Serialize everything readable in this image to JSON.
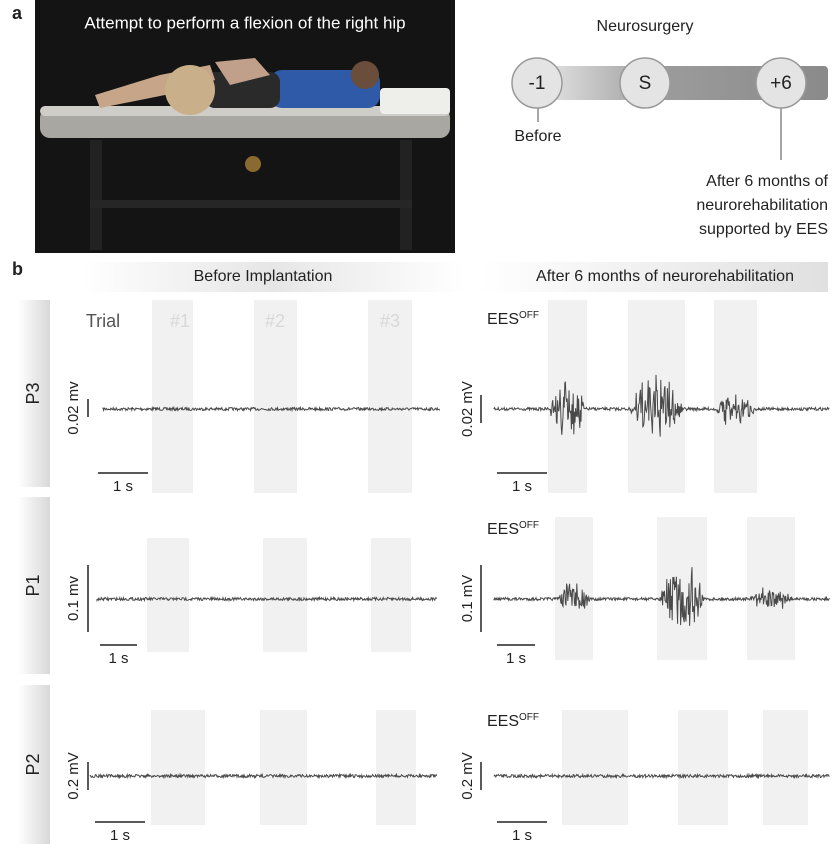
{
  "panel_a": {
    "label": "a",
    "photo_caption": "Attempt to perform a flexion of the right hip",
    "timeline": {
      "event_label": "Neurosurgery",
      "points": [
        "-1",
        "S",
        "+6"
      ],
      "before_label": "Before",
      "after_label": [
        "After 6 months of",
        "neurorehabilitation",
        "supported by EES"
      ]
    }
  },
  "panel_b": {
    "label": "b",
    "left_header": "Before Implantation",
    "right_header": "After 6 months of neurorehabilitation",
    "trial_label": "Trial",
    "trials": [
      "#1",
      "#2",
      "#3"
    ],
    "time_scale": "1 s",
    "condition": "EES",
    "condition_sup": "OFF",
    "rows": [
      {
        "patient": "P3",
        "left_scale": "0.02 mv",
        "right_scale": "0.02 mV"
      },
      {
        "patient": "P1",
        "left_scale": "0.1 mv",
        "right_scale": "0.1 mV"
      },
      {
        "patient": "P2",
        "left_scale": "0.2 mV",
        "right_scale": "0.2 mV"
      }
    ]
  }
}
